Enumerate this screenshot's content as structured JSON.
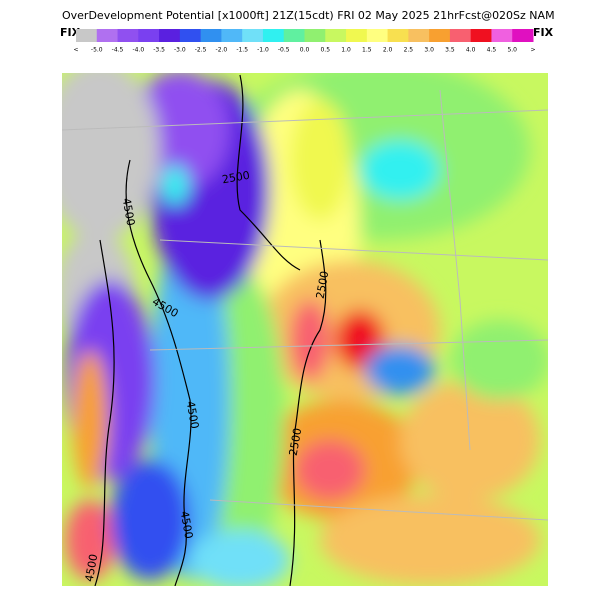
{
  "header": {
    "title": "OverDevelopment Potential [x1000ft] 21Z(15cdt) FRI 02 May 2025 21hrFcst@020Sz NAM",
    "left_label": "FIX",
    "right_label": "FIX"
  },
  "colorbar": {
    "labels": [
      "<",
      "-5.0",
      "-4.5",
      "-4.0",
      "-3.5",
      "-3.0",
      "-2.5",
      "-2.0",
      "-1.5",
      "-1.0",
      "-0.5",
      "0.0",
      "0.5",
      "1.0",
      "1.5",
      "2.0",
      "2.5",
      "3.0",
      "3.5",
      "4.0",
      "4.5",
      "5.0",
      ">"
    ],
    "colors": [
      "#c8c8c8",
      "#b070f0",
      "#9050f0",
      "#7a40f0",
      "#5a20e0",
      "#3050f0",
      "#3090f0",
      "#50b8f8",
      "#70e0f8",
      "#30f0f0",
      "#60f0a0",
      "#90f070",
      "#c8f860",
      "#f0f850",
      "#ffff80",
      "#f8e050",
      "#f8c060",
      "#f8a030",
      "#f86070",
      "#f01020",
      "#f060e0",
      "#e010c0"
    ]
  },
  "contour_labels": [
    "4500",
    "2500",
    "2500",
    "4500",
    "4500",
    "2500",
    "4500",
    "4500"
  ]
}
